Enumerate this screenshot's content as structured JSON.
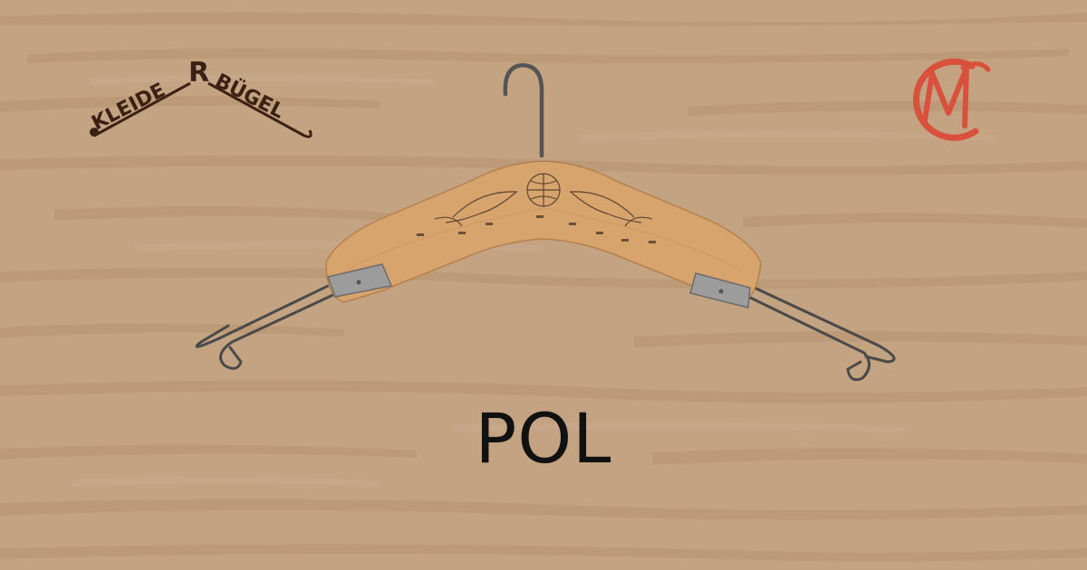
{
  "caption": "POL",
  "logo_left_text_part1": "KLEIDE",
  "logo_left_text_letter": "R",
  "logo_left_text_part2": "BÜGEL",
  "logo_left_icon": "kleiderbuegel-logo-icon",
  "logo_right_icon": "cm-monogram-icon",
  "hanger_icon": "wooden-coat-hanger-icon",
  "colors": {
    "background": "#c4a383",
    "wood_grain": "#b9946f",
    "logo_dark": "#3a2114",
    "logo_red": "#d9513d",
    "hanger_wood": "#d7a46e",
    "hanger_wire": "#4a4a4a",
    "caption": "#111111"
  }
}
